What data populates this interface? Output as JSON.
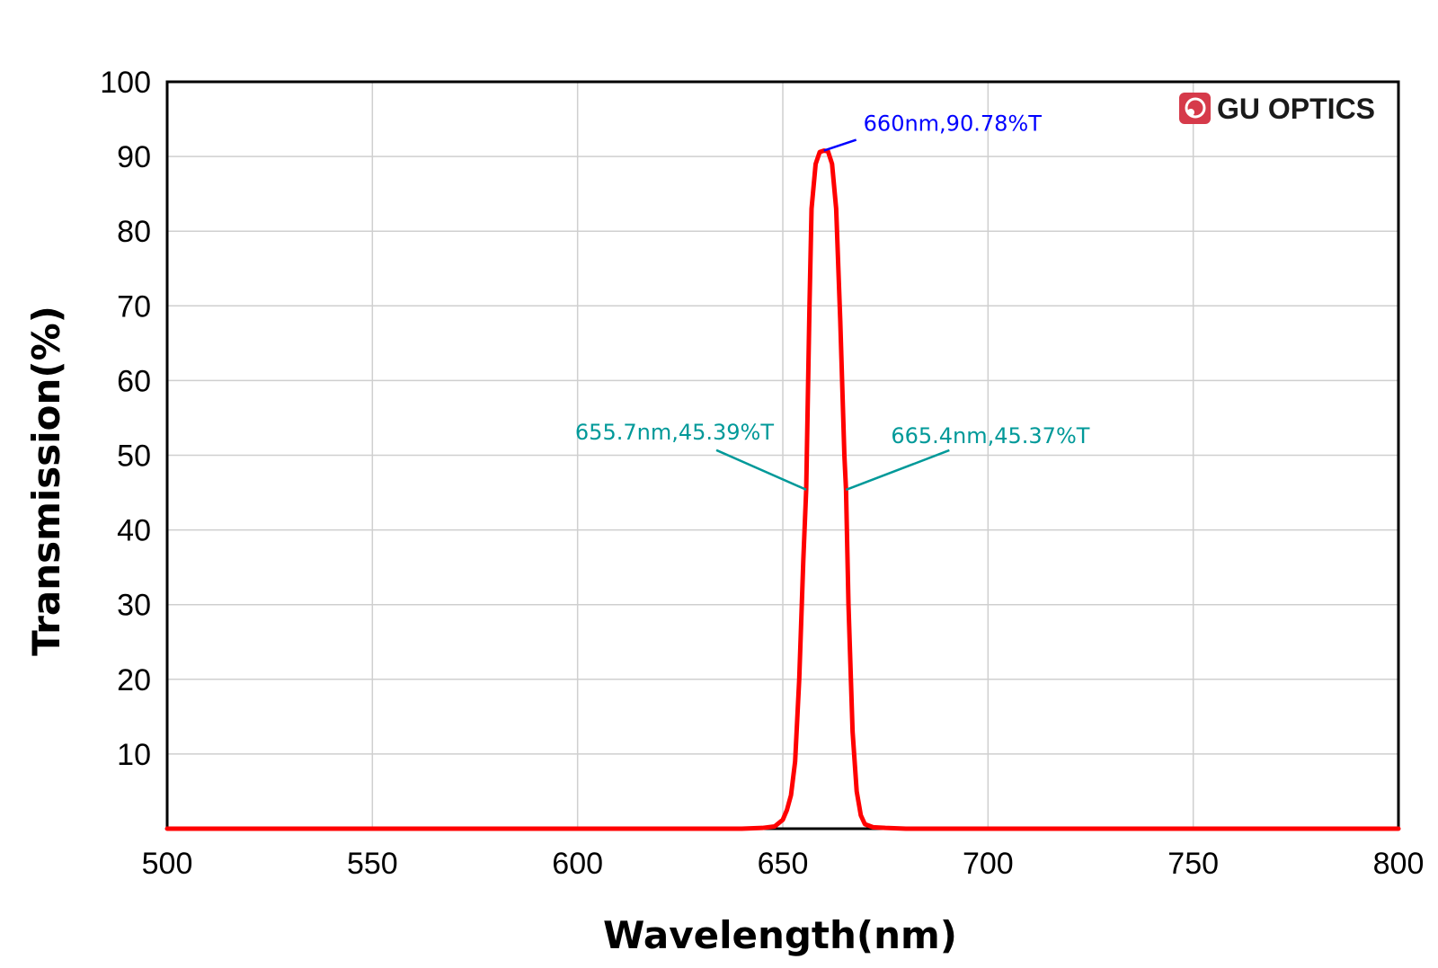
{
  "chart_data": {
    "type": "line",
    "title": "",
    "xlabel": "Wavelength(nm)",
    "ylabel": "Transmission(%)",
    "xlim": [
      500,
      800
    ],
    "ylim": [
      0,
      100
    ],
    "x_ticks": [
      500,
      550,
      600,
      650,
      700,
      750,
      800
    ],
    "y_ticks": [
      10,
      20,
      30,
      40,
      50,
      60,
      70,
      80,
      90,
      100
    ],
    "grid": true,
    "series": [
      {
        "color": "#ff0000",
        "x": [
          500,
          640,
          645,
          648,
          650,
          651,
          652,
          653,
          654,
          655,
          655.7,
          656.5,
          657,
          658,
          659,
          660,
          661,
          662,
          663,
          664,
          665,
          665.4,
          666,
          667,
          668,
          669,
          670,
          672,
          675,
          680,
          800
        ],
        "y": [
          0,
          0,
          0.1,
          0.3,
          1.2,
          2.5,
          4.5,
          9,
          20,
          36,
          45.39,
          70,
          83,
          89,
          90.6,
          90.78,
          90.7,
          89,
          83,
          68,
          50,
          45.37,
          30,
          13,
          5,
          1.8,
          0.6,
          0.2,
          0.1,
          0,
          0
        ]
      }
    ],
    "annotations": [
      {
        "text": "660nm,90.78%T",
        "x": 660,
        "y": 90.78,
        "color": "#0000ff"
      },
      {
        "text": "655.7nm,45.39%T",
        "x": 655.7,
        "y": 45.39,
        "color": "#009999"
      },
      {
        "text": "665.4nm,45.37%T",
        "x": 665.4,
        "y": 45.37,
        "color": "#009999"
      }
    ]
  },
  "logo": {
    "text": "GU OPTICS",
    "color": "#d63a4a"
  }
}
